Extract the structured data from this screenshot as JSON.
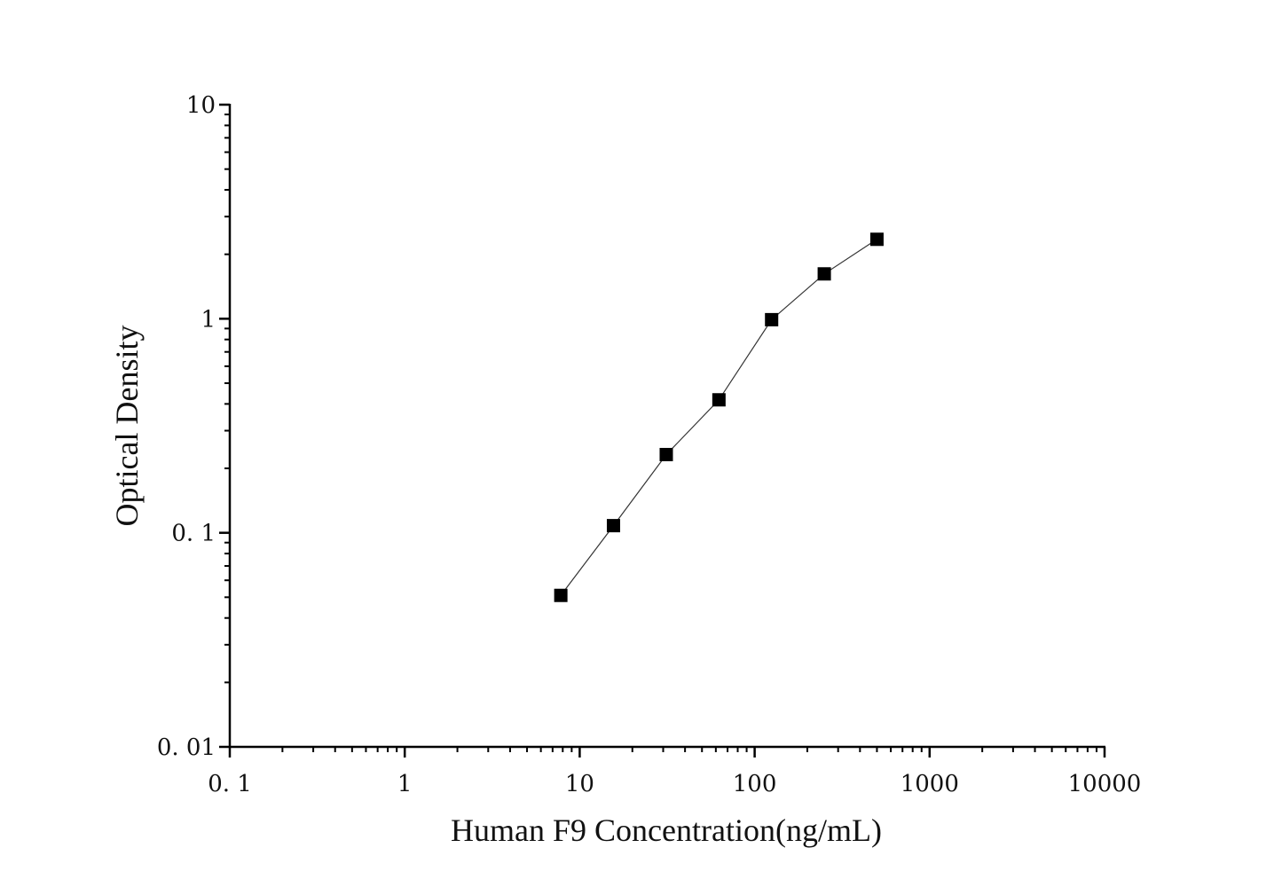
{
  "chart_data": {
    "type": "line",
    "xlabel": "Human F9 Concentration(ng/mL)",
    "ylabel": "Optical Density",
    "x_scale": "log",
    "y_scale": "log",
    "xlim": [
      0.1,
      10000
    ],
    "ylim": [
      0.01,
      10
    ],
    "x_ticks": [
      {
        "value": 0.1,
        "label": "0. 1"
      },
      {
        "value": 1,
        "label": "1"
      },
      {
        "value": 10,
        "label": "10"
      },
      {
        "value": 100,
        "label": "100"
      },
      {
        "value": 1000,
        "label": "1000"
      },
      {
        "value": 10000,
        "label": "10000"
      }
    ],
    "y_ticks": [
      {
        "value": 0.01,
        "label": "0. 01"
      },
      {
        "value": 0.1,
        "label": "0. 1"
      },
      {
        "value": 1,
        "label": "1"
      },
      {
        "value": 10,
        "label": "10"
      }
    ],
    "grid": false,
    "marker": "square",
    "series": [
      {
        "x": [
          7.8,
          15.6,
          31.25,
          62.5,
          125,
          250,
          500
        ],
        "y": [
          0.051,
          0.108,
          0.232,
          0.418,
          0.99,
          1.62,
          2.35
        ]
      }
    ],
    "colors": {
      "line": "#333333",
      "marker": "#000000",
      "axis": "#000000"
    }
  }
}
